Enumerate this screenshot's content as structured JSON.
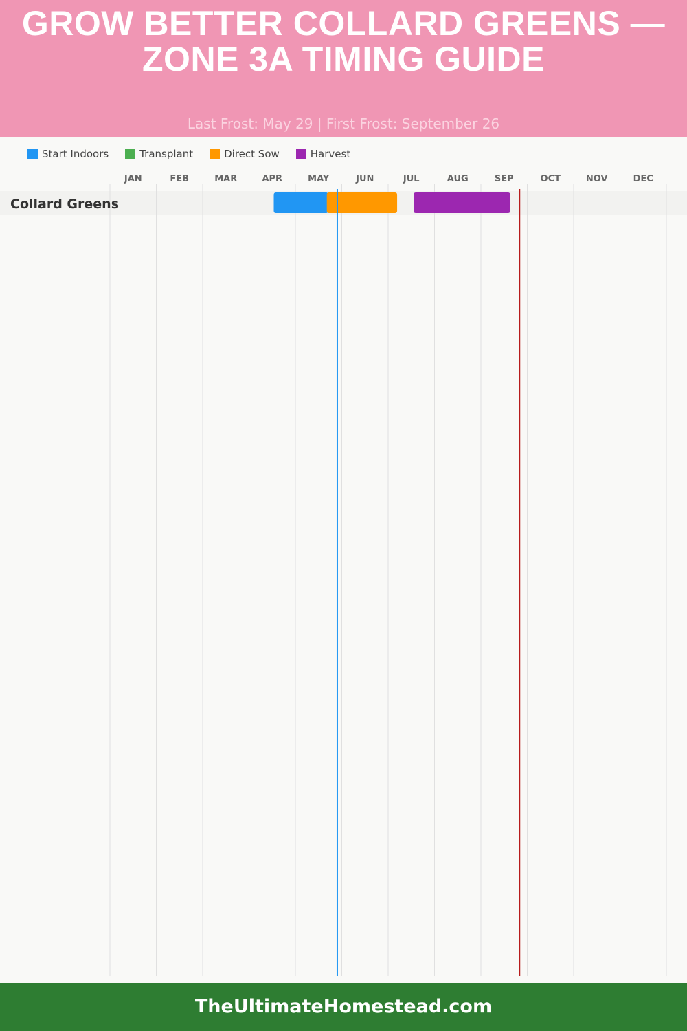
{
  "header": {
    "title": "GROW BETTER COLLARD GREENS — ZONE 3A TIMING GUIDE",
    "subtitle": "Last Frost: May 29 | First Frost: September 26"
  },
  "legend": [
    {
      "label": "Start Indoors",
      "color": "#2196f3"
    },
    {
      "label": "Transplant",
      "color": "#4caf50"
    },
    {
      "label": "Direct Sow",
      "color": "#ff9800"
    },
    {
      "label": "Harvest",
      "color": "#9c27b0"
    }
  ],
  "chart_data": {
    "type": "timeline",
    "months": [
      "JAN",
      "FEB",
      "MAR",
      "APR",
      "MAY",
      "JUN",
      "JUL",
      "AUG",
      "SEP",
      "OCT",
      "NOV",
      "DEC"
    ],
    "rows": [
      {
        "label": "Collard Greens",
        "bars": [
          {
            "series": "Start Indoors",
            "start": "Apr 17",
            "end": "May 23"
          },
          {
            "series": "Direct Sow",
            "start": "May 22",
            "end": "Jul 7"
          },
          {
            "series": "Harvest",
            "start": "Jul 18",
            "end": "Sep 20"
          }
        ]
      }
    ],
    "markers": [
      {
        "name": "Last Frost",
        "date": "May 29",
        "color": "#2196f3"
      },
      {
        "name": "First Frost",
        "date": "Sep 26",
        "color": "#b71c1c"
      }
    ],
    "grid": true
  },
  "footer": {
    "text": "TheUltimateHomestead.com"
  }
}
